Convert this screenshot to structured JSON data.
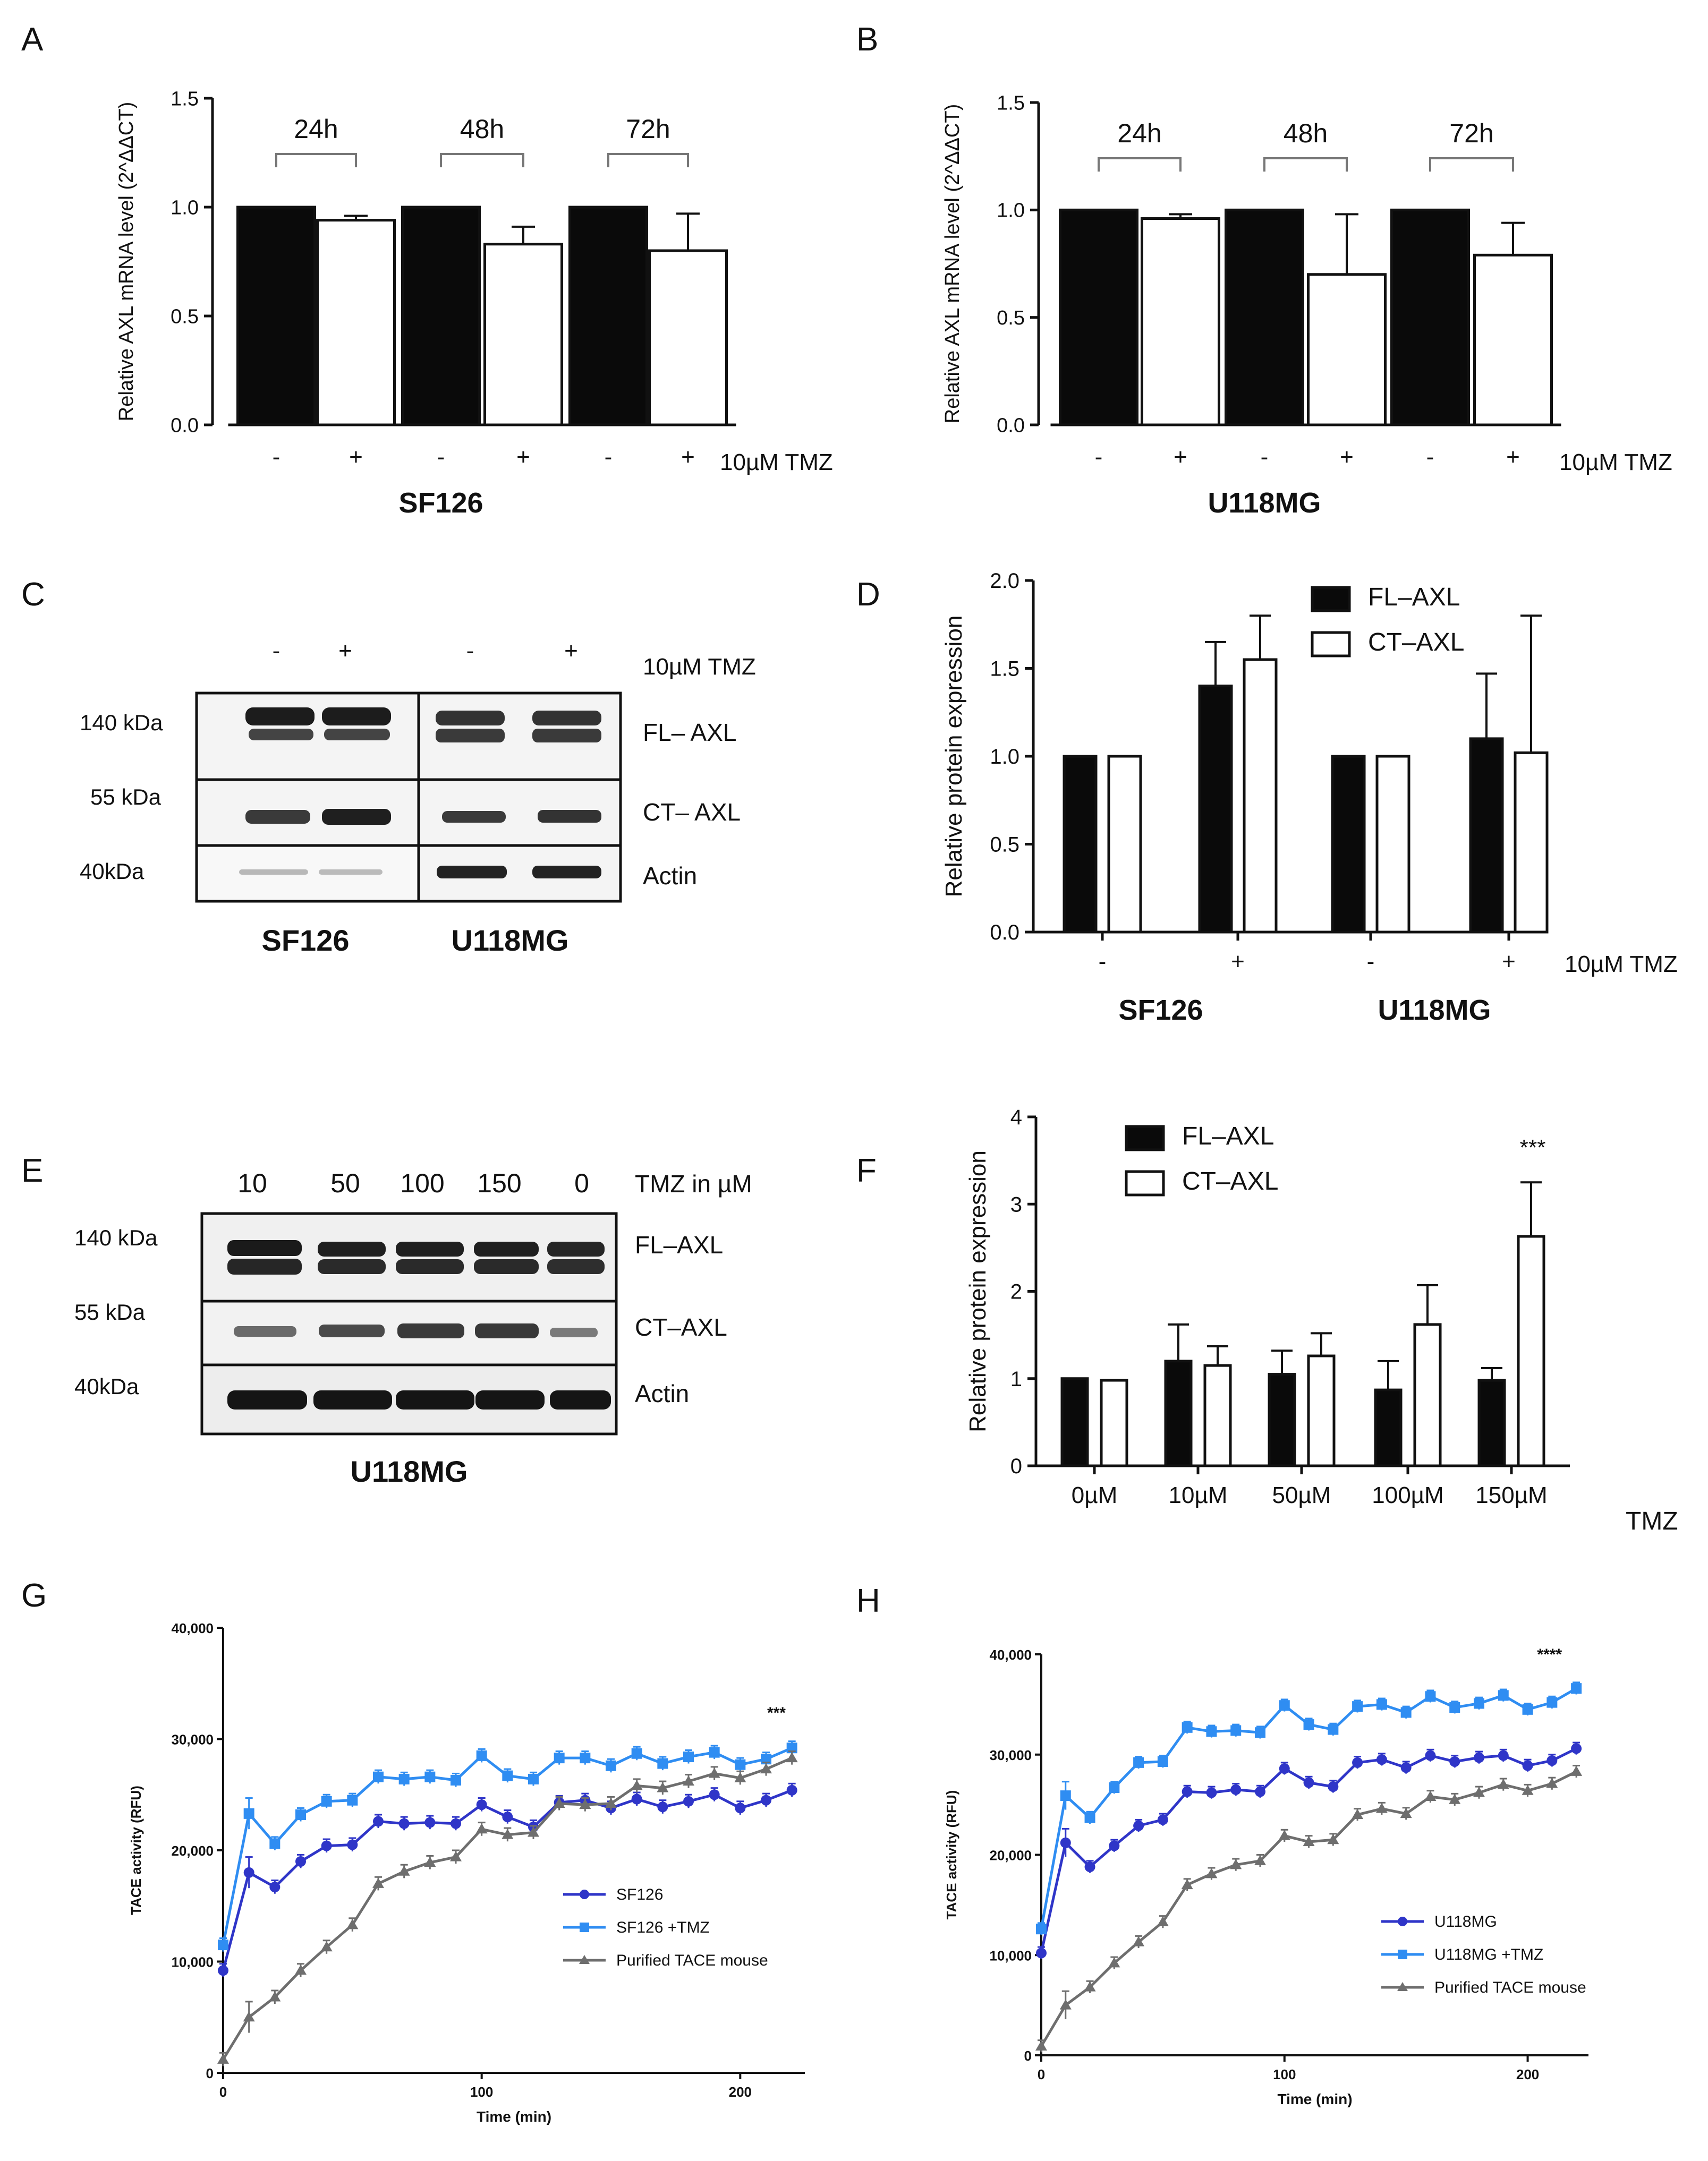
{
  "colors": {
    "black": "#0a0a0a",
    "blue_dark": "#2f35c8",
    "blue_light": "#2f8df2",
    "grey": "#6e6e6e",
    "blot_bg": "#f2f2f2",
    "band": "#1c1c1c"
  },
  "panel_labels": [
    "A",
    "B",
    "C",
    "D",
    "E",
    "F",
    "G",
    "H"
  ],
  "chart_data": [
    {
      "panel": "A",
      "type": "bar",
      "title": "",
      "ylabel": "Relative AXL mRNA level (2^ΔΔCT)",
      "ylim": [
        0,
        1.5
      ],
      "yticks": [
        "0.0",
        "0.5",
        "1.0",
        "1.5"
      ],
      "ytick_values": [
        0,
        0.5,
        1.0,
        1.5
      ],
      "groups": [
        "24h",
        "48h",
        "72h"
      ],
      "categories": [
        "-",
        "+",
        "-",
        "+",
        "-",
        "+"
      ],
      "values": [
        1.0,
        0.94,
        1.0,
        0.83,
        1.0,
        0.8
      ],
      "errors": [
        0,
        0.02,
        0,
        0.08,
        0,
        0.17
      ],
      "fills": [
        "black",
        "white",
        "black",
        "white",
        "black",
        "white"
      ],
      "treatment_label": "10µM TMZ",
      "cell_line": "SF126"
    },
    {
      "panel": "B",
      "type": "bar",
      "title": "",
      "ylabel": "Relative AXL mRNA level (2^ΔΔCT)",
      "ylim": [
        0,
        1.5
      ],
      "yticks": [
        "0.0",
        "0.5",
        "1.0",
        "1.5"
      ],
      "ytick_values": [
        0,
        0.5,
        1.0,
        1.5
      ],
      "groups": [
        "24h",
        "48h",
        "72h"
      ],
      "categories": [
        "-",
        "+",
        "-",
        "+",
        "-",
        "+"
      ],
      "values": [
        1.0,
        0.96,
        1.0,
        0.7,
        1.0,
        0.79
      ],
      "errors": [
        0,
        0.02,
        0,
        0.28,
        0,
        0.15
      ],
      "fills": [
        "black",
        "white",
        "black",
        "white",
        "black",
        "white"
      ],
      "treatment_label": "10µM TMZ",
      "cell_line": "U118MG"
    },
    {
      "panel": "D",
      "type": "bar",
      "title": "",
      "ylabel": "Relative protein expression",
      "ylim": [
        0,
        2.0
      ],
      "yticks": [
        "0.0",
        "0.5",
        "1.0",
        "1.5",
        "2.0"
      ],
      "ytick_values": [
        0,
        0.5,
        1.0,
        1.5,
        2.0
      ],
      "categories": [
        "-",
        "+",
        "-",
        "+"
      ],
      "series": [
        {
          "name": "FL–AXL",
          "values": [
            1.0,
            1.4,
            1.0,
            1.1
          ],
          "errors": [
            0,
            0.25,
            0,
            0.37
          ]
        },
        {
          "name": "CT–AXL",
          "values": [
            1.0,
            1.55,
            1.0,
            1.02
          ],
          "errors": [
            0,
            0.25,
            0,
            0.78
          ]
        }
      ],
      "treatment_label": "10µM TMZ",
      "cell_lines": [
        "SF126",
        "U118MG"
      ],
      "legend_position": "top-right"
    },
    {
      "panel": "F",
      "type": "bar",
      "title": "",
      "ylabel": "Relative protein expression",
      "ylim": [
        0,
        4
      ],
      "yticks": [
        "0",
        "1",
        "2",
        "3",
        "4"
      ],
      "ytick_values": [
        0,
        1,
        2,
        3,
        4
      ],
      "categories": [
        "0µM",
        "10µM",
        "50µM",
        "100µM",
        "150µM"
      ],
      "series": [
        {
          "name": "FL–AXL",
          "values": [
            1.0,
            1.2,
            1.05,
            0.87,
            0.98
          ],
          "errors": [
            0,
            0.42,
            0.27,
            0.33,
            0.14
          ]
        },
        {
          "name": "CT–AXL",
          "values": [
            0.98,
            1.15,
            1.26,
            1.62,
            2.63
          ],
          "errors": [
            0,
            0.22,
            0.26,
            0.45,
            0.62
          ]
        }
      ],
      "xlabel": "TMZ",
      "annotation": "***",
      "legend_position": "top-left"
    },
    {
      "panel": "G",
      "type": "line",
      "title": "",
      "xlabel": "Time (min)",
      "ylabel": "TACE activity (RFU)",
      "xlim": [
        0,
        225
      ],
      "ylim": [
        0,
        40000
      ],
      "xticks": [
        "0",
        "100",
        "200"
      ],
      "xtick_values": [
        0,
        100,
        200
      ],
      "yticks": [
        "0",
        "10,000",
        "20,000",
        "30,000",
        "40,000"
      ],
      "ytick_values": [
        0,
        10000,
        20000,
        30000,
        40000
      ],
      "x": [
        0,
        10,
        20,
        30,
        40,
        50,
        60,
        70,
        80,
        90,
        100,
        110,
        120,
        130,
        140,
        150,
        160,
        170,
        180,
        190,
        200,
        210,
        220
      ],
      "series": [
        {
          "name": "SF126",
          "marker": "circle",
          "values": [
            9200,
            18000,
            16700,
            19000,
            20400,
            20500,
            22600,
            22400,
            22500,
            22400,
            24100,
            23000,
            22100,
            24300,
            24500,
            23800,
            24600,
            23900,
            24400,
            25000,
            23800,
            24500,
            25400
          ]
        },
        {
          "name": "SF126  +TMZ",
          "marker": "square",
          "values": [
            11500,
            23300,
            20600,
            23200,
            24400,
            24500,
            26600,
            26400,
            26600,
            26300,
            28500,
            26700,
            26400,
            28300,
            28300,
            27600,
            28700,
            27800,
            28400,
            28800,
            27700,
            28200,
            29200
          ]
        },
        {
          "name": "Purified TACE mouse",
          "marker": "triangle",
          "values": [
            1200,
            5000,
            6800,
            9200,
            11300,
            13300,
            17000,
            18100,
            18900,
            19400,
            21900,
            21400,
            21600,
            24200,
            24100,
            24200,
            25800,
            25600,
            26200,
            26900,
            26500,
            27300,
            28300
          ]
        }
      ],
      "annotation": "***",
      "legend_position": "bottom-right"
    },
    {
      "panel": "H",
      "type": "line",
      "title": "",
      "xlabel": "Time (min)",
      "ylabel": "TACE activity (RFU)",
      "xlim": [
        0,
        225
      ],
      "ylim": [
        0,
        40000
      ],
      "xticks": [
        "0",
        "100",
        "200"
      ],
      "xtick_values": [
        0,
        100,
        200
      ],
      "yticks": [
        "0",
        "10,000",
        "20,000",
        "30,000",
        "40,000"
      ],
      "ytick_values": [
        0,
        10000,
        20000,
        30000,
        40000
      ],
      "x": [
        0,
        10,
        20,
        30,
        40,
        50,
        60,
        70,
        80,
        90,
        100,
        110,
        120,
        130,
        140,
        150,
        160,
        170,
        180,
        190,
        200,
        210,
        220
      ],
      "series": [
        {
          "name": "U118MG",
          "marker": "circle",
          "values": [
            10200,
            21200,
            18800,
            20900,
            22900,
            23500,
            26300,
            26200,
            26500,
            26300,
            28600,
            27200,
            26800,
            29200,
            29500,
            28700,
            29900,
            29300,
            29700,
            29900,
            28900,
            29400,
            30600
          ]
        },
        {
          "name": "U118MG +TMZ",
          "marker": "square",
          "values": [
            12600,
            25900,
            23700,
            26700,
            29200,
            29300,
            32700,
            32300,
            32400,
            32200,
            34900,
            33000,
            32500,
            34800,
            35000,
            34200,
            35800,
            34700,
            35100,
            35900,
            34500,
            35200,
            36600
          ]
        },
        {
          "name": "Purified TACE mouse",
          "marker": "triangle",
          "values": [
            900,
            5000,
            6800,
            9200,
            11300,
            13300,
            17000,
            18100,
            19000,
            19400,
            21900,
            21300,
            21500,
            24000,
            24600,
            24100,
            25800,
            25500,
            26200,
            27000,
            26400,
            27100,
            28300
          ]
        }
      ],
      "annotation": "****",
      "legend_position": "bottom-right"
    }
  ],
  "blot_C": {
    "treatment_signs": [
      "-",
      "+",
      "-",
      "+"
    ],
    "treatment_label": "10µM TMZ",
    "mw_labels": [
      "140 kDa",
      "55 kDa",
      "40kDa"
    ],
    "band_labels": [
      "FL– AXL",
      "CT– AXL",
      "Actin"
    ],
    "cell_lines": [
      "SF126",
      "U118MG"
    ]
  },
  "blot_E": {
    "doses": [
      "10",
      "50",
      "100",
      "150",
      "0"
    ],
    "dose_label": "TMZ in µM",
    "mw_labels": [
      "140 kDa",
      "55 kDa",
      "40kDa"
    ],
    "band_labels": [
      "FL–AXL",
      "CT–AXL",
      "Actin"
    ],
    "cell_line": "U118MG"
  }
}
